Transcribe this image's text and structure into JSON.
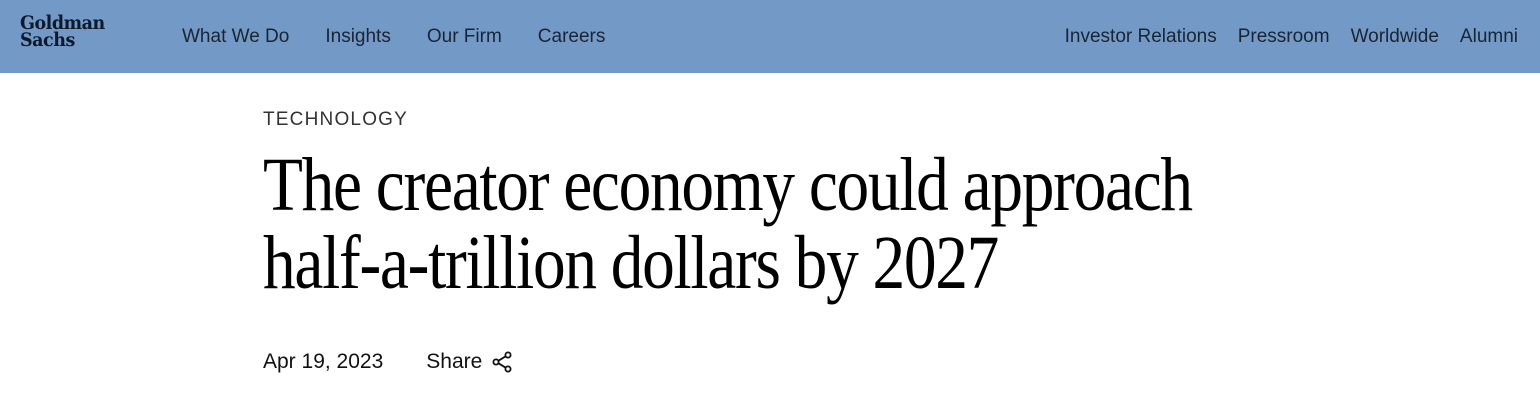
{
  "header": {
    "logo": {
      "line1": "Goldman",
      "line2": "Sachs"
    },
    "nav_left": [
      {
        "label": "What We Do"
      },
      {
        "label": "Insights"
      },
      {
        "label": "Our Firm"
      },
      {
        "label": "Careers"
      }
    ],
    "nav_right": [
      {
        "label": "Investor Relations"
      },
      {
        "label": "Pressroom"
      },
      {
        "label": "Worldwide"
      },
      {
        "label": "Alumni"
      }
    ],
    "background_color": "#7399c6"
  },
  "article": {
    "category": "TECHNOLOGY",
    "headline": "The creator economy could approach half-a-trillion dollars by 2027",
    "date": "Apr 19, 2023",
    "share_label": "Share",
    "share_icon": "share-icon"
  }
}
